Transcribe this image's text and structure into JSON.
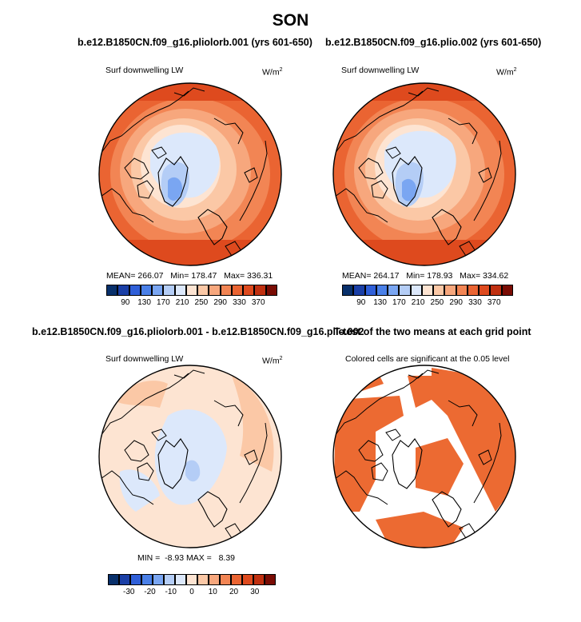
{
  "title": "SON",
  "colors": {
    "scale": [
      "#08306b",
      "#1a3fa6",
      "#2f5fd8",
      "#4a80e8",
      "#7aa6f2",
      "#b4cdf6",
      "#dce8fb",
      "#fde4d2",
      "#fbc8a6",
      "#f7a77d",
      "#f28554",
      "#ea6432",
      "#de4a1e",
      "#c03010",
      "#7a0c04"
    ],
    "land": "#ffffff",
    "coast": "#000000",
    "significant": "#ec6a32"
  },
  "panels": [
    {
      "id": "p1",
      "title": "b.e12.B1850CN.f09_g16.pliolorb.001 (yrs 601-650)",
      "variable": "Surf downwelling LW",
      "units": "W/m",
      "units_exp": "2",
      "stats": {
        "mean_label": "MEAN=",
        "mean": "266.07",
        "min_label": "Min=",
        "min": "178.47",
        "max_label": "Max=",
        "max": "336.31"
      },
      "colorbar_ticks": [
        "90",
        "130",
        "170",
        "210",
        "250",
        "290",
        "330",
        "370"
      ]
    },
    {
      "id": "p2",
      "title": "b.e12.B1850CN.f09_g16.plio.002 (yrs 601-650)",
      "variable": "Surf downwelling LW",
      "units": "W/m",
      "units_exp": "2",
      "stats": {
        "mean_label": "MEAN=",
        "mean": "264.17",
        "min_label": "Min=",
        "min": "178.93",
        "max_label": "Max=",
        "max": "334.62"
      },
      "colorbar_ticks": [
        "90",
        "130",
        "170",
        "210",
        "250",
        "290",
        "330",
        "370"
      ]
    },
    {
      "id": "p3",
      "title": "b.e12.B1850CN.f09_g16.pliolorb.001 - b.e12.B1850CN.f09_g16.plio.002",
      "variable": "Surf downwelling LW",
      "units": "W/m",
      "units_exp": "2",
      "stats": {
        "min_label": "MIN =",
        "min": "-8.93",
        "max_label": "MAX =",
        "max": "8.39"
      },
      "colorbar_ticks": [
        "-30",
        "-20",
        "-10",
        "0",
        "10",
        "20",
        "30"
      ]
    },
    {
      "id": "p4",
      "title": "T-test of the two means at each grid point",
      "variable": "Colored cells are significant at the 0.05 level"
    }
  ]
}
